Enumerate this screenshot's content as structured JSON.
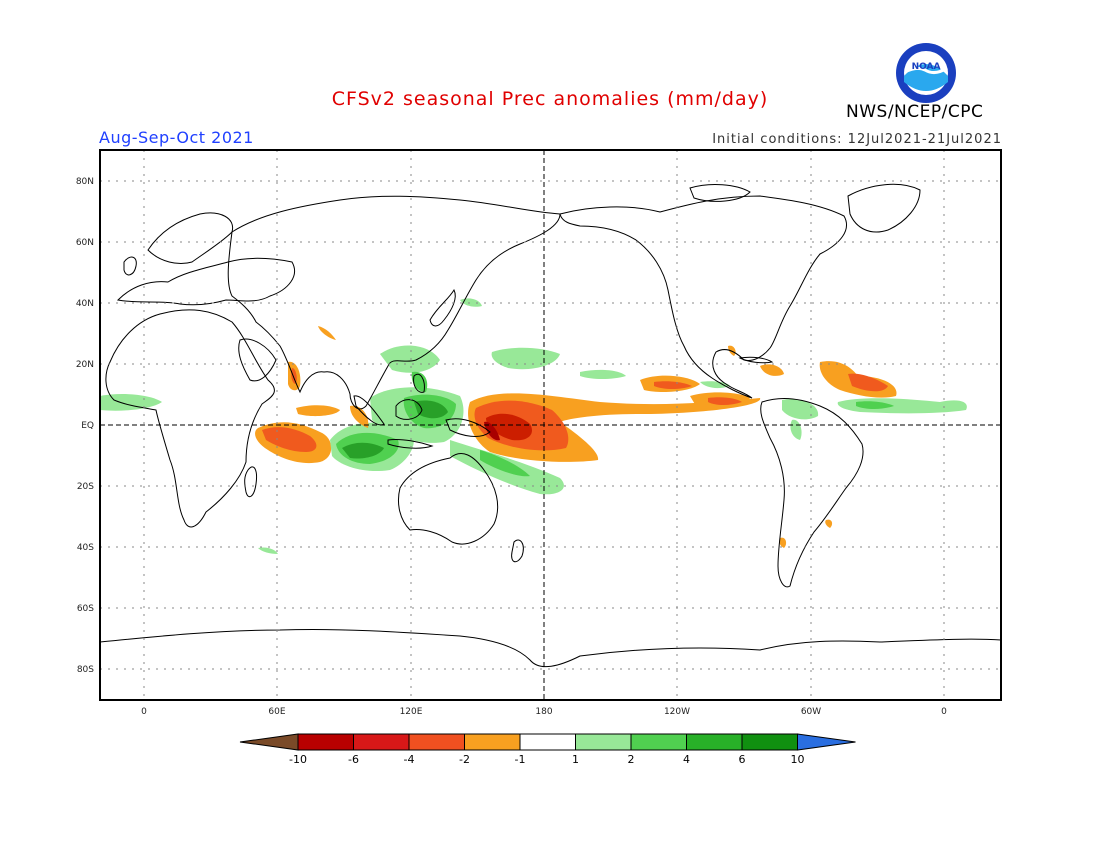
{
  "header": {
    "title": "CFSv2 seasonal Prec anomalies (mm/day)",
    "agency": "NWS/NCEP/CPC",
    "period": "Aug-Sep-Oct 2021",
    "initial_conditions": "Initial conditions: 12Jul2021-21Jul2021",
    "logo_text": "NOAA"
  },
  "map": {
    "lat_labels": [
      "80N",
      "60N",
      "40N",
      "20N",
      "EQ",
      "20S",
      "40S",
      "60S",
      "80S"
    ],
    "lon_labels": [
      "0",
      "60E",
      "120E",
      "180",
      "120W",
      "60W",
      "0"
    ],
    "colorbar": {
      "labels": [
        "-10",
        "-6",
        "-4",
        "-2",
        "-1",
        "1",
        "2",
        "4",
        "6",
        "10"
      ],
      "colors": [
        "#7a4a28",
        "#b80000",
        "#d81818",
        "#f05020",
        "#f8a020",
        "#ffffff",
        "#98e898",
        "#50d050",
        "#28b028",
        "#109010",
        "#2a6ee0"
      ]
    },
    "colors": {
      "strong_dry": "#cc1e00",
      "dry": "#f05a1e",
      "mild_dry": "#f8a020",
      "mild_wet": "#98e898",
      "wet": "#50d050",
      "strong_wet": "#28a028"
    }
  }
}
